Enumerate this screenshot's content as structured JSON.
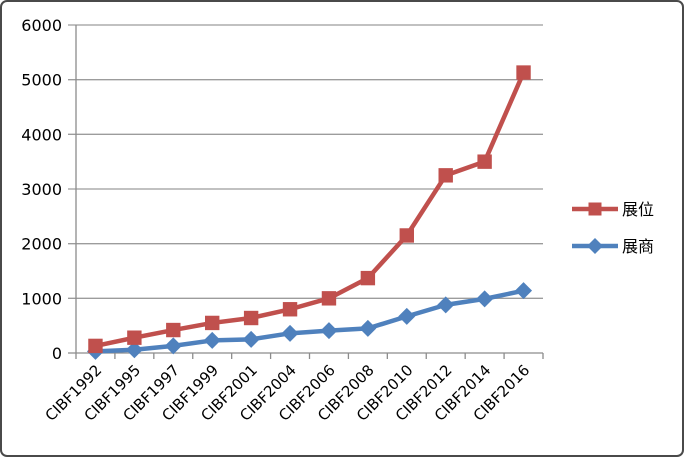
{
  "chart_data": {
    "type": "line",
    "title": "",
    "xlabel": "",
    "ylabel": "",
    "categories": [
      "CIBF1992",
      "CIBF1995",
      "CIBF1997",
      "CIBF1999",
      "CIBF2001",
      "CIBF2004",
      "CIBF2006",
      "CIBF2008",
      "CIBF2010",
      "CIBF2012",
      "CIBF2014",
      "CIBF2016"
    ],
    "series": [
      {
        "id": "booths",
        "name": "展位",
        "color": "#C0504D",
        "marker": "square",
        "values": [
          130,
          280,
          420,
          550,
          640,
          800,
          1000,
          1370,
          2150,
          3250,
          3500,
          5130
        ]
      },
      {
        "id": "exhibitors",
        "name": "展商",
        "color": "#4F81BD",
        "marker": "diamond",
        "values": [
          30,
          60,
          130,
          230,
          250,
          360,
          410,
          450,
          670,
          880,
          990,
          1140
        ]
      }
    ],
    "ylim": [
      0,
      6000
    ],
    "ytick_interval": 1000,
    "yticks": [
      "0",
      "1000",
      "2000",
      "3000",
      "4000",
      "5000",
      "6000"
    ],
    "grid": true,
    "legend_position": "right",
    "gridline_color": "#9C9C9C",
    "axis_color": "#8C8C8C",
    "text_color": "#000000",
    "background": "#FFFFFF",
    "border_color": "#4A4A4A"
  }
}
